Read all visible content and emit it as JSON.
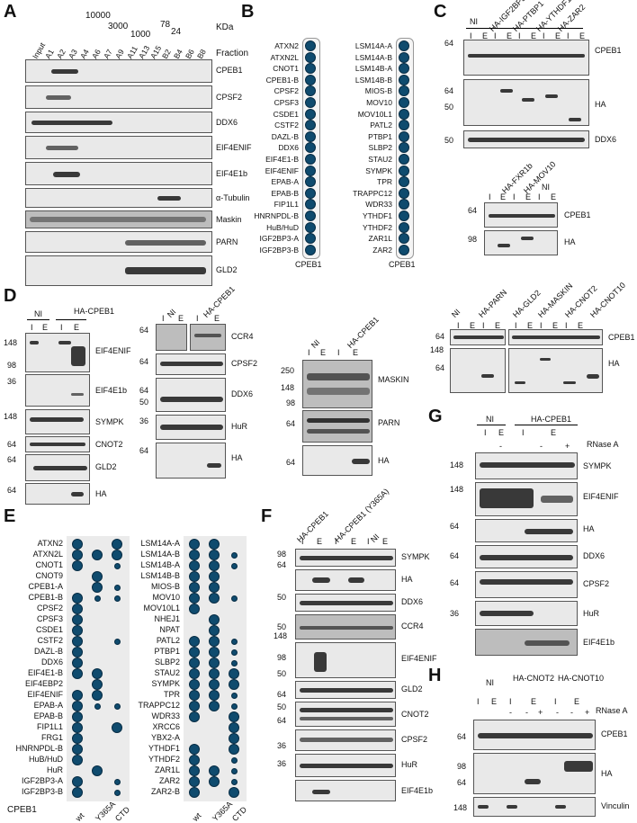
{
  "panels": {
    "A": "A",
    "B": "B",
    "C": "C",
    "D": "D",
    "E": "E",
    "F": "F",
    "G": "G",
    "H": "H"
  },
  "A": {
    "mw": [
      "10000",
      "3000",
      "1000",
      "78",
      "24"
    ],
    "kda": "KDa",
    "fraction": "Fraction",
    "lanes": [
      "Input",
      "A1",
      "A2",
      "A3",
      "A4",
      "A6",
      "A7",
      "A9",
      "A11",
      "A13",
      "A15",
      "B2",
      "B4",
      "B6",
      "B8"
    ],
    "rows": [
      "CPEB1",
      "CPSF2",
      "DDX6",
      "EIF4ENIF",
      "EIF4E1b",
      "α-Tubulin",
      "Maskin",
      "PARN",
      "GLD2"
    ]
  },
  "B": {
    "left": [
      "ATXN2",
      "ATXN2L",
      "CNOT1",
      "CPEB1-B",
      "CPSF2",
      "CPSF3",
      "CSDE1",
      "CSTF2",
      "DAZL-B",
      "DDX6",
      "EIF4E1-B",
      "EIF4ENIF",
      "EPAB-A",
      "EPAB-B",
      "FIP1L1",
      "HNRNPDL-B",
      "HuB/HuD",
      "IGF2BP3-A",
      "IGF2BP3-B"
    ],
    "right": [
      "LSM14A-A",
      "LSM14A-B",
      "LSM14B-A",
      "LSM14B-B",
      "MIOS-B",
      "MOV10",
      "MOV10L1",
      "PATL2",
      "PTBP1",
      "SLBP2",
      "STAU2",
      "SYMPK",
      "TPR",
      "TRAPPC12",
      "WDR33",
      "YTHDF1",
      "YTHDF2",
      "ZAR1L",
      "ZAR2"
    ],
    "xlabel": "CPEB1"
  },
  "C": {
    "top_lanes": [
      "NI",
      "HA-IGF2BP3",
      "HA-PTBP1",
      "HA-YTHDF1",
      "HA-ZAR2"
    ],
    "top_markers": [
      "64",
      "64",
      "50",
      "50"
    ],
    "top_rows": [
      "CPEB1",
      "HA",
      "DDX6"
    ],
    "mid_lanes": [
      "HA-FXR1b",
      "HA-MOV10",
      "NI"
    ],
    "mid_markers": [
      "64",
      "98"
    ],
    "mid_rows": [
      "CPEB1",
      "HA"
    ],
    "bot_lanes": [
      "NI",
      "HA-PARN",
      "HA-GLD2",
      "HA-MASKIN",
      "HA-CNOT2",
      "HA-CNOT10"
    ],
    "bot_markers": [
      "64",
      "148",
      "64"
    ],
    "bot_rows": [
      "CPEB1",
      "HA"
    ],
    "ie": [
      "I",
      "E"
    ]
  },
  "D": {
    "lanes": [
      "NI",
      "HA-CPEB1"
    ],
    "ie": [
      "I",
      "E"
    ],
    "col1_markers": [
      "148",
      "98",
      "36",
      "148",
      "64",
      "64",
      "64"
    ],
    "col1_rows": [
      "EIF4ENIF",
      "EIF4E1b",
      "SYMPK",
      "CNOT2",
      "GLD2",
      "HA"
    ],
    "col2_markers": [
      "64",
      "64",
      "64",
      "50",
      "36",
      "64"
    ],
    "col2_rows": [
      "CCR4",
      "CPSF2",
      "DDX6",
      "HuR",
      "HA"
    ],
    "col3_markers": [
      "250",
      "148",
      "98",
      "64",
      "64"
    ],
    "col3_rows": [
      "MASKIN",
      "PARN",
      "HA"
    ]
  },
  "E": {
    "left": [
      "ATXN2",
      "ATXN2L",
      "CNOT1",
      "CNOT9",
      "CPEB1-A",
      "CPEB1-B",
      "CPSF2",
      "CPSF3",
      "CSDE1",
      "CSTF2",
      "DAZL-B",
      "DDX6",
      "EIF4E1-B",
      "EIF4EBP2",
      "EIF4ENIF",
      "EPAB-A",
      "EPAB-B",
      "FIP1L1",
      "FRG1",
      "HNRNPDL-B",
      "HuB/HuD",
      "HuR",
      "IGF2BP3-A",
      "IGF2BP3-B"
    ],
    "right": [
      "LSM14A-A",
      "LSM14A-B",
      "LSM14B-A",
      "LSM14B-B",
      "MIOS-B",
      "MOV10",
      "MOV10L1",
      "NHEJ1",
      "NPAT",
      "PATL2",
      "PTBP1",
      "SLBP2",
      "STAU2",
      "SYMPK",
      "TPR",
      "TRAPPC12",
      "WDR33",
      "XRCC6",
      "YBX2-A",
      "YTHDF1",
      "YTHDF2",
      "ZAR1L",
      "ZAR2",
      "ZAR2-B"
    ],
    "cols": [
      "wt",
      "Y365A",
      "CTD"
    ],
    "xlabel": "CPEB1"
  },
  "F": {
    "lanes": [
      "HA-CPEB1",
      "HA-CPEB1 (Y365A)",
      "NI"
    ],
    "ie": [
      "I",
      "E"
    ],
    "markers": [
      "98",
      "64",
      "50",
      "50",
      "148",
      "98",
      "50",
      "64",
      "50",
      "64",
      "36",
      "36"
    ],
    "rows": [
      "SYMPK",
      "HA",
      "DDX6",
      "CCR4",
      "EIF4ENIF",
      "GLD2",
      "CNOT2",
      "CPSF2",
      "HuR",
      "EIF4E1b"
    ]
  },
  "G": {
    "lanes": [
      "NI",
      "HA-CPEB1"
    ],
    "ie": [
      "I",
      "E",
      "I",
      "E"
    ],
    "rnase": [
      "-",
      "+"
    ],
    "rnase_label": "RNase A",
    "markers": [
      "148",
      "148",
      "64",
      "64",
      "64",
      "36"
    ],
    "rows": [
      "SYMPK",
      "EIF4ENIF",
      "HA",
      "DDX6",
      "CPSF2",
      "HuR",
      "EIF4E1b"
    ]
  },
  "H": {
    "lanes": [
      "NI",
      "HA-CNOT2",
      "HA-CNOT10"
    ],
    "ie": [
      "I",
      "E"
    ],
    "rnase": [
      "-",
      "+"
    ],
    "rnase_label": "RNase A",
    "markers": [
      "64",
      "98",
      "64",
      "148"
    ],
    "rows": [
      "CPEB1",
      "HA",
      "Vinculin"
    ]
  }
}
